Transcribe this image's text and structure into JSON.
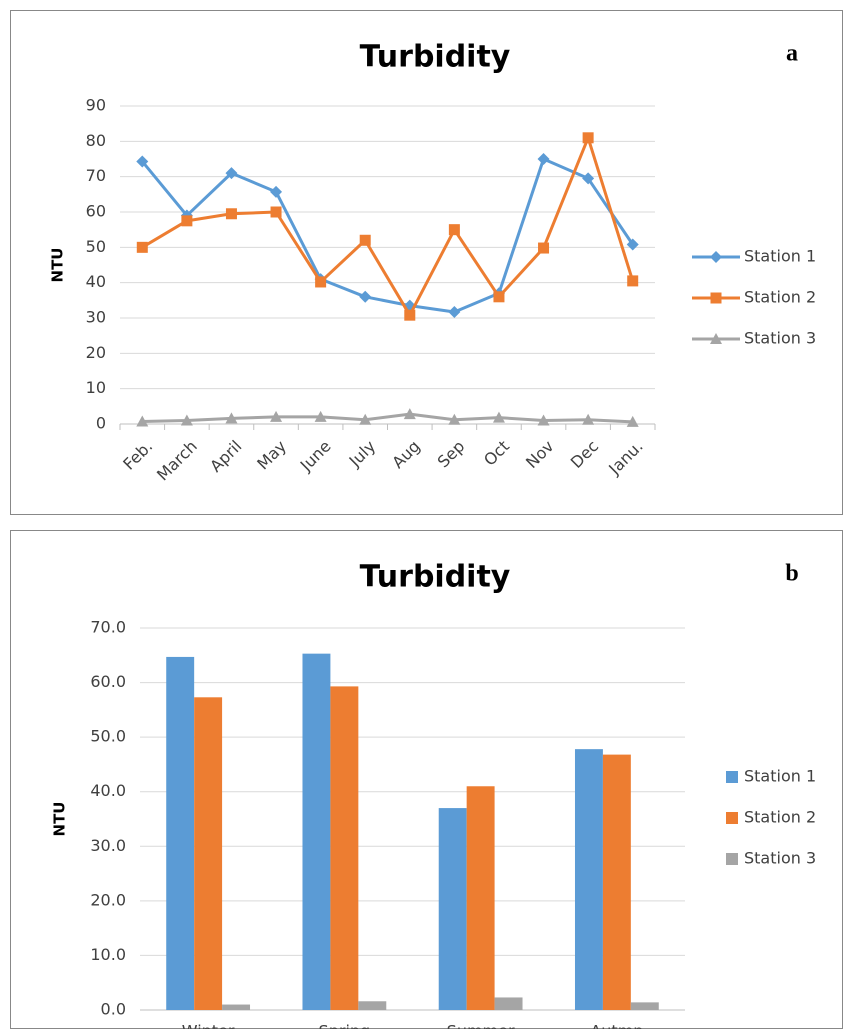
{
  "chart_data": [
    {
      "type": "line",
      "title": "Turbidity",
      "panel_label": "a",
      "y_label": "NTU",
      "categories": [
        "Feb.",
        "March",
        "April",
        "May",
        "June",
        "July",
        "Aug",
        "Sep",
        "Oct",
        "Nov",
        "Dec",
        "Janu."
      ],
      "series": [
        {
          "name": "Station 1",
          "color": "#5b9bd5",
          "marker": "diamond",
          "values": [
            74.3,
            59,
            71,
            65.7,
            41,
            36,
            33.5,
            31.7,
            37,
            75,
            69.5,
            50.8
          ]
        },
        {
          "name": "Station 2",
          "color": "#ed7d31",
          "marker": "square",
          "values": [
            50,
            57.5,
            59.5,
            60,
            40.2,
            52,
            30.8,
            55,
            36,
            49.8,
            81,
            40.5
          ]
        },
        {
          "name": "Station 3",
          "color": "#a5a5a5",
          "marker": "triangle",
          "values": [
            0.7,
            1,
            1.6,
            2,
            2,
            1.2,
            2.8,
            1.2,
            1.8,
            1,
            1.2,
            0.6
          ]
        }
      ],
      "ylim": [
        0,
        90
      ],
      "yticks": [
        0,
        10,
        20,
        30,
        40,
        50,
        60,
        70,
        80,
        90
      ],
      "grid": true,
      "legend": "right"
    },
    {
      "type": "bar",
      "title": "Turbidity",
      "panel_label": "b",
      "y_label": "NTU",
      "categories": [
        "Winter",
        "Spring",
        "Summer",
        "Autmn"
      ],
      "series": [
        {
          "name": "Station 1",
          "color": "#5b9bd5",
          "values": [
            64.7,
            65.3,
            37.0,
            47.8
          ]
        },
        {
          "name": "Station 2",
          "color": "#ed7d31",
          "values": [
            57.3,
            59.3,
            41.0,
            46.8
          ]
        },
        {
          "name": "Station 3",
          "color": "#a5a5a5",
          "values": [
            1.0,
            1.6,
            2.3,
            1.4
          ]
        }
      ],
      "ylim": [
        0,
        70
      ],
      "yticks": [
        {
          "value": 0,
          "label": "0.0"
        },
        {
          "value": 10,
          "label": "10.0"
        },
        {
          "value": 20,
          "label": "20.0"
        },
        {
          "value": 30,
          "label": "30.0"
        },
        {
          "value": 40,
          "label": "40.0"
        },
        {
          "value": 50,
          "label": "50.0"
        },
        {
          "value": 60,
          "label": "60.0"
        },
        {
          "value": 70,
          "label": "70.0"
        }
      ],
      "grid": true,
      "legend": "right"
    }
  ]
}
